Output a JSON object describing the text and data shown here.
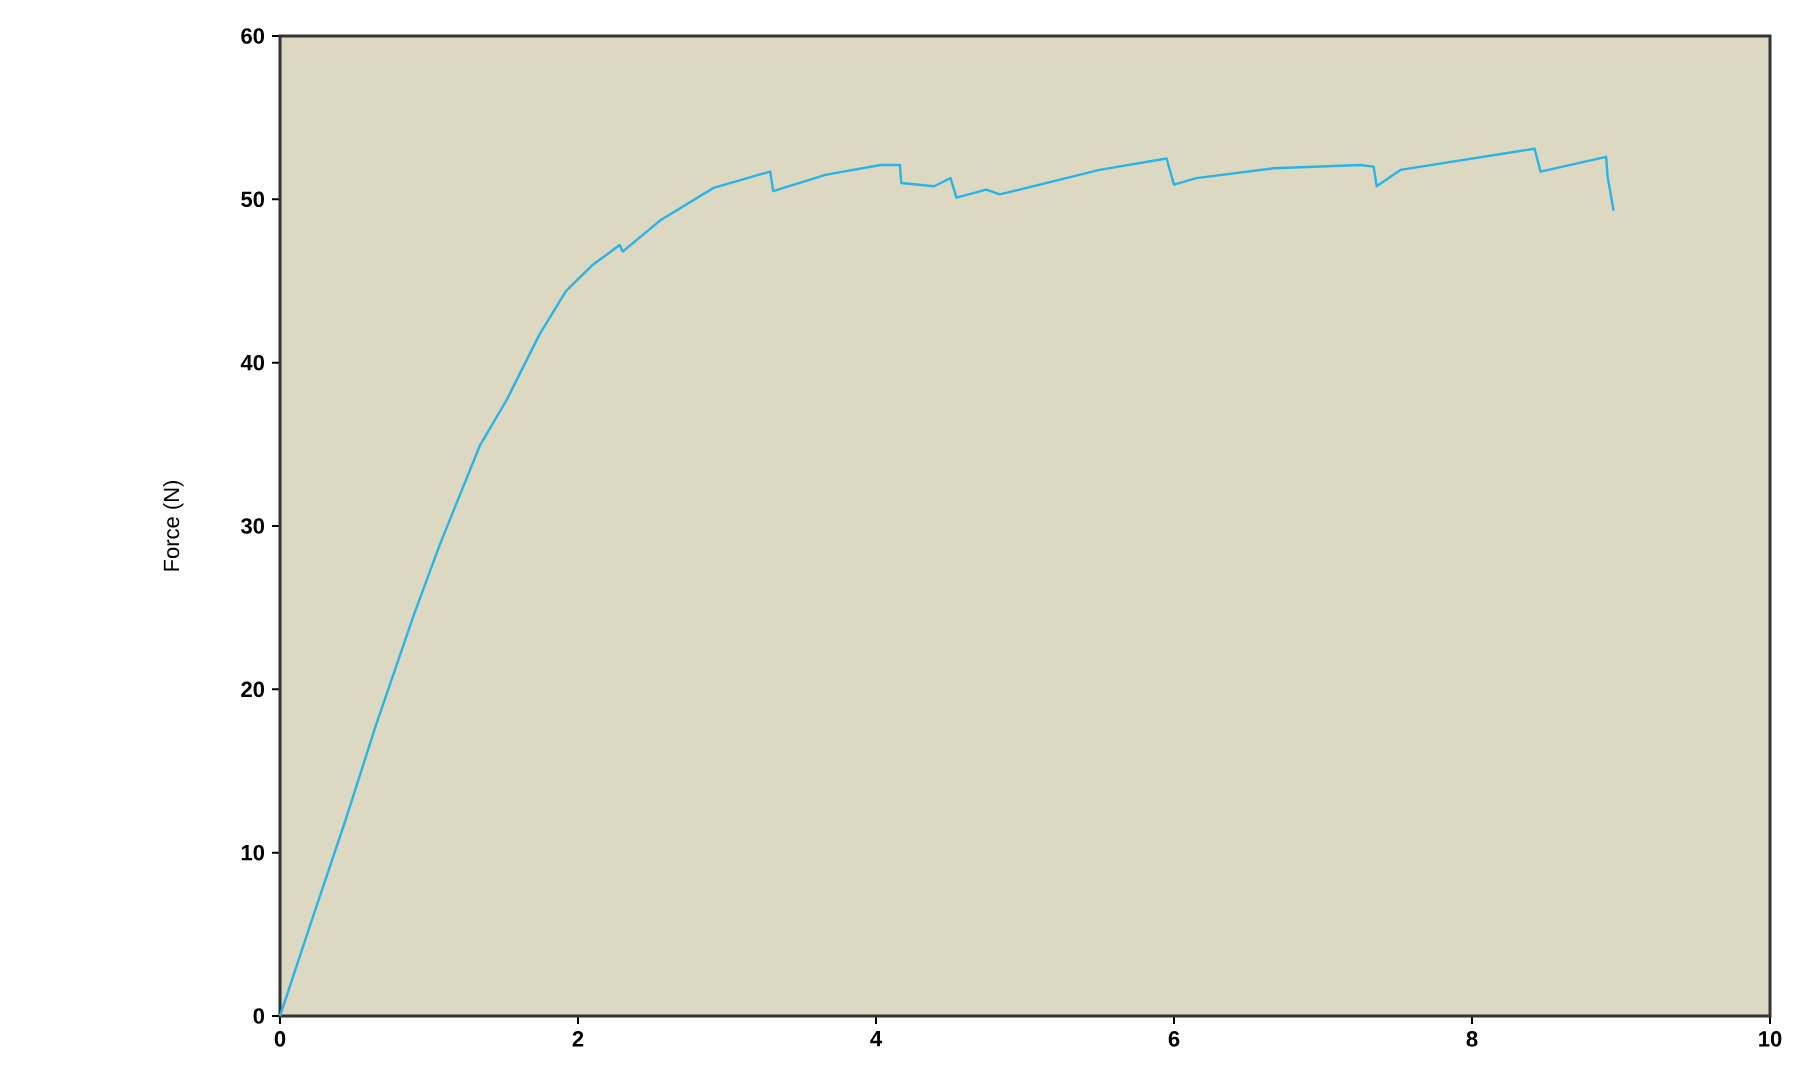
{
  "chart_data": {
    "type": "line",
    "ylabel": "Force (N)",
    "xlim": [
      0,
      10
    ],
    "ylim": [
      0,
      60
    ],
    "xticks": [
      0,
      2,
      4,
      6,
      8,
      10
    ],
    "yticks": [
      0,
      10,
      20,
      30,
      40,
      50,
      60
    ],
    "grid": false,
    "marker": "none",
    "line_style": "solid",
    "series": [
      {
        "color": "#2ab4e6",
        "x": [
          0,
          0.2,
          0.44,
          0.64,
          0.9,
          1.07,
          1.34,
          1.52,
          1.74,
          1.92,
          2.1,
          2.28,
          2.3,
          2.55,
          2.91,
          3.29,
          3.31,
          3.66,
          4.03,
          4.16,
          4.17,
          4.39,
          4.5,
          4.54,
          4.74,
          4.83,
          5.5,
          5.95,
          6.0,
          6.15,
          6.67,
          7.25,
          7.34,
          7.36,
          7.52,
          8.42,
          8.46,
          8.9,
          8.91,
          8.95
        ],
        "values": [
          0,
          5.5,
          12,
          17.7,
          24.6,
          28.8,
          34.9,
          37.7,
          41.7,
          44.4,
          46,
          47.2,
          46.8,
          48.7,
          50.7,
          51.7,
          50.5,
          51.5,
          52.1,
          52.1,
          51,
          50.8,
          51.3,
          50.1,
          50.6,
          50.3,
          51.8,
          52.5,
          50.9,
          51.3,
          51.9,
          52.1,
          52,
          50.8,
          51.8,
          53.1,
          51.7,
          52.6,
          51.4,
          49.3
        ]
      }
    ]
  }
}
